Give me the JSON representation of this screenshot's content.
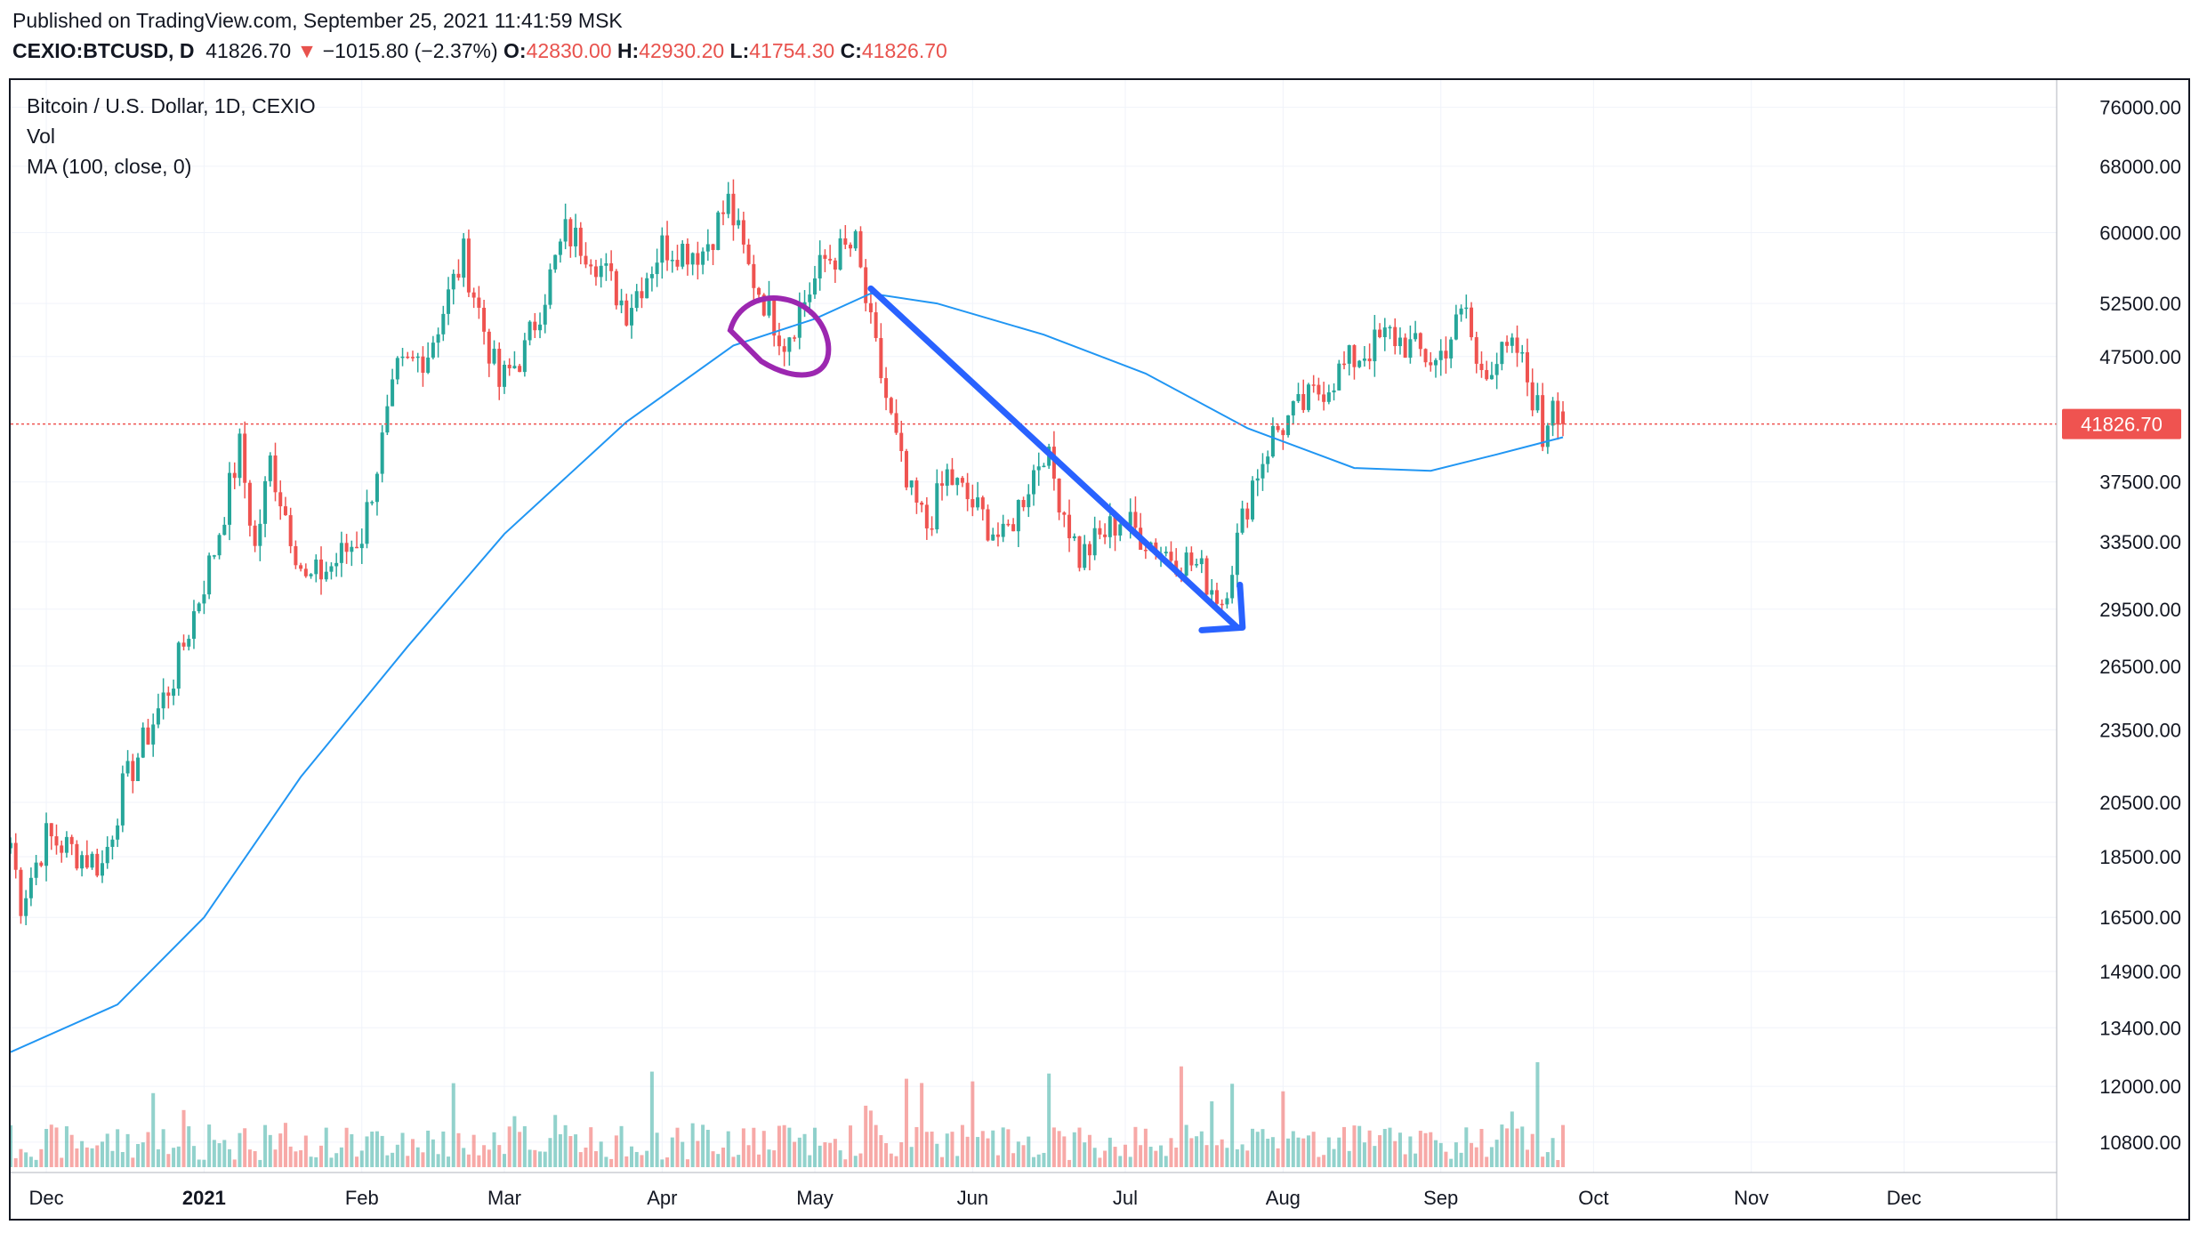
{
  "header": {
    "publish_text": "Published on TradingView.com, September 25, 2021 11:41:59 MSK",
    "symbol": "CEXIO:BTCUSD, D",
    "last": "41826.70",
    "change_arrow": "▼",
    "change": "−1015.80 (−2.37%)",
    "open_label": "O:",
    "open": "42830.00",
    "high_label": "H:",
    "high": "42930.20",
    "low_label": "L:",
    "low": "41754.30",
    "close_label": "C:",
    "close": "41826.70"
  },
  "legend": {
    "title": "Bitcoin / U.S. Dollar, 1D, CEXIO",
    "vol": "Vol",
    "ma": "MA (100, close, 0)"
  },
  "colors": {
    "up": "#26a69a",
    "down": "#ef5350",
    "ma": "#2196f3",
    "last_price_bg": "#ef5350",
    "arrow_annotation": "#2962ff",
    "circle_annotation": "#9c27b0"
  },
  "chart_data": {
    "type": "candlestick",
    "scale": "log",
    "timeframe": "1D",
    "price_axis_ticks": [
      "76000.00",
      "68000.00",
      "60000.00",
      "52500.00",
      "47500.00",
      "37500.00",
      "33500.00",
      "29500.00",
      "26500.00",
      "23500.00",
      "20500.00",
      "18500.00",
      "16500.00",
      "14900.00",
      "13400.00",
      "12000.00",
      "10800.00"
    ],
    "time_axis_ticks": [
      "Dec",
      "2021",
      "Feb",
      "Mar",
      "Apr",
      "May",
      "Jun",
      "Jul",
      "Aug",
      "Sep",
      "Oct",
      "Nov",
      "Dec"
    ],
    "last_price_label": "41826.70",
    "ylim": [
      10200,
      80000
    ],
    "x_range": [
      "2020-11-24",
      "2021-12-31"
    ],
    "ma_points": [
      [
        "2020-11-24",
        12800
      ],
      [
        "2020-12-15",
        14000
      ],
      [
        "2021-01-01",
        16500
      ],
      [
        "2021-01-20",
        21500
      ],
      [
        "2021-02-10",
        27500
      ],
      [
        "2021-03-01",
        34000
      ],
      [
        "2021-03-25",
        42000
      ],
      [
        "2021-04-15",
        48500
      ],
      [
        "2021-05-01",
        51000
      ],
      [
        "2021-05-12",
        53500
      ],
      [
        "2021-05-25",
        52500
      ],
      [
        "2021-06-15",
        49500
      ],
      [
        "2021-07-05",
        46000
      ],
      [
        "2021-07-25",
        41500
      ],
      [
        "2021-08-15",
        38500
      ],
      [
        "2021-08-30",
        38300
      ],
      [
        "2021-09-12",
        39500
      ],
      [
        "2021-09-25",
        40800
      ]
    ],
    "price_anchors": [
      [
        "2020-11-24",
        19000
      ],
      [
        "2020-11-26",
        17000
      ],
      [
        "2020-12-01",
        19200
      ],
      [
        "2020-12-12",
        18200
      ],
      [
        "2020-12-16",
        21000
      ],
      [
        "2020-12-26",
        26000
      ],
      [
        "2021-01-03",
        33000
      ],
      [
        "2021-01-08",
        40000
      ],
      [
        "2021-01-11",
        33000
      ],
      [
        "2021-01-14",
        39000
      ],
      [
        "2021-01-21",
        31000
      ],
      [
        "2021-01-26",
        32000
      ],
      [
        "2021-02-01",
        34000
      ],
      [
        "2021-02-08",
        46000
      ],
      [
        "2021-02-14",
        48000
      ],
      [
        "2021-02-21",
        57500
      ],
      [
        "2021-02-28",
        45000
      ],
      [
        "2021-03-05",
        48000
      ],
      [
        "2021-03-13",
        60000
      ],
      [
        "2021-03-18",
        58000
      ],
      [
        "2021-03-25",
        52000
      ],
      [
        "2021-04-01",
        58500
      ],
      [
        "2021-04-09",
        58000
      ],
      [
        "2021-04-14",
        63500
      ],
      [
        "2021-04-18",
        56000
      ],
      [
        "2021-04-25",
        49000
      ],
      [
        "2021-05-03",
        57000
      ],
      [
        "2021-05-09",
        58500
      ],
      [
        "2021-05-12",
        50000
      ],
      [
        "2021-05-19",
        37000
      ],
      [
        "2021-05-23",
        34500
      ],
      [
        "2021-05-27",
        38000
      ],
      [
        "2021-06-07",
        33500
      ],
      [
        "2021-06-15",
        40000
      ],
      [
        "2021-06-22",
        32500
      ],
      [
        "2021-06-30",
        35000
      ],
      [
        "2021-07-08",
        33000
      ],
      [
        "2021-07-15",
        32000
      ],
      [
        "2021-07-20",
        30000
      ],
      [
        "2021-07-26",
        37500
      ],
      [
        "2021-07-30",
        41000
      ],
      [
        "2021-08-08",
        44500
      ],
      [
        "2021-08-14",
        47000
      ],
      [
        "2021-08-22",
        49500
      ],
      [
        "2021-08-31",
        47000
      ],
      [
        "2021-09-06",
        52000
      ],
      [
        "2021-09-08",
        46500
      ],
      [
        "2021-09-16",
        48000
      ],
      [
        "2021-09-20",
        43000
      ],
      [
        "2021-09-21",
        40500
      ],
      [
        "2021-09-23",
        44500
      ],
      [
        "2021-09-25",
        41826.7
      ]
    ],
    "series": [
      {
        "name": "Vol",
        "type": "bar"
      },
      {
        "name": "MA (100, close, 0)",
        "type": "line"
      }
    ]
  }
}
